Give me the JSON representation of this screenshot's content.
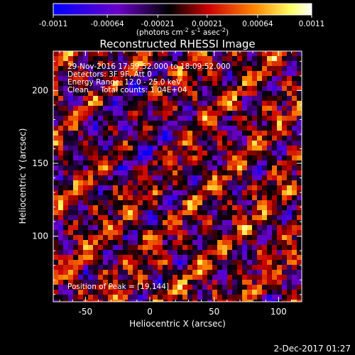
{
  "chart_data": {
    "type": "heatmap",
    "title": "Reconstructed RHESSI Image",
    "xlabel": "Heliocentric X (arcsec)",
    "ylabel": "Heliocentric Y (arcsec)",
    "xlim": [
      -75,
      118
    ],
    "ylim": [
      55,
      227
    ],
    "x_ticks": [
      -50,
      0,
      50,
      100
    ],
    "y_ticks": [
      100,
      150,
      200
    ],
    "colorbar": {
      "ticks": [
        "-0.0011",
        "-0.00064",
        "-0.00021",
        "0.00021",
        "0.00064",
        "0.0011"
      ],
      "range": [
        -0.0011,
        0.0011
      ],
      "label_main": "(photons cm",
      "label_sup1": "-2",
      "label_mid1": " s",
      "label_sup2": "-1",
      "label_mid2": " asec",
      "label_sup3": "-2",
      "label_end": ")",
      "colors": [
        "#0000ff",
        "#6a00c8",
        "#000000",
        "#cc0000",
        "#ff8800",
        "#ffff66",
        "#ffffff"
      ]
    },
    "annotations": [
      "29-Nov-2016 17:59:52.000 to 18:09:52.000",
      "Detectors: 3F 9F, Att 0",
      "Energy Range: 12.0 - 25.0 keV",
      "Clean     Total counts: 1.04E+04"
    ],
    "peak_text": "Position of Peak = [19,144]",
    "grid": false
  },
  "footer": {
    "date": "2-Dec-2017 01:27"
  }
}
